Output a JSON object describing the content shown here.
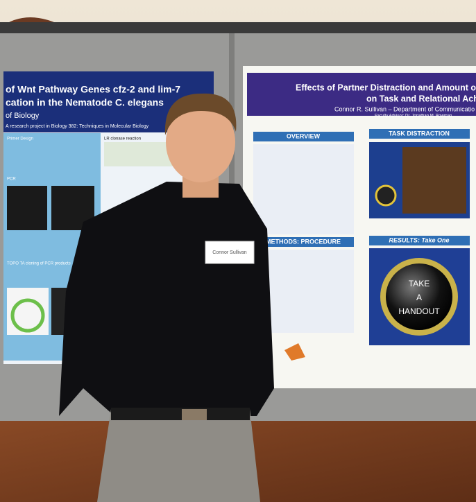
{
  "left_poster": {
    "title_line_1": "of Wnt Pathway Genes cfz-2 and lim-7",
    "title_line_2": "cation in the Nematode C. elegans",
    "department": "of Biology",
    "subtitle": "A research project in Biology 382: Techniques in Molecular Biology",
    "sections": [
      "Primer Design",
      "LR clonase reaction",
      "PCR",
      "TOPO TA cloning of PCR products"
    ]
  },
  "right_poster": {
    "title_line_1": "Effects of Partner Distraction and Amount of Indi",
    "title_line_2": "on Task and Relational Achieveme",
    "author": "Connor R. Sullivan – Department of Communicatio",
    "advisor": "Faculty Advisor: Dr. Jonathan M. Bowman",
    "sections": [
      "OVERVIEW",
      "TASK DISTRACTION",
      "METHODS: PROCEDURE",
      "RESULTS: Take One"
    ],
    "handout": [
      "TAKE",
      "A",
      "HANDOUT"
    ]
  },
  "name_tag": "Connor Sullivan"
}
